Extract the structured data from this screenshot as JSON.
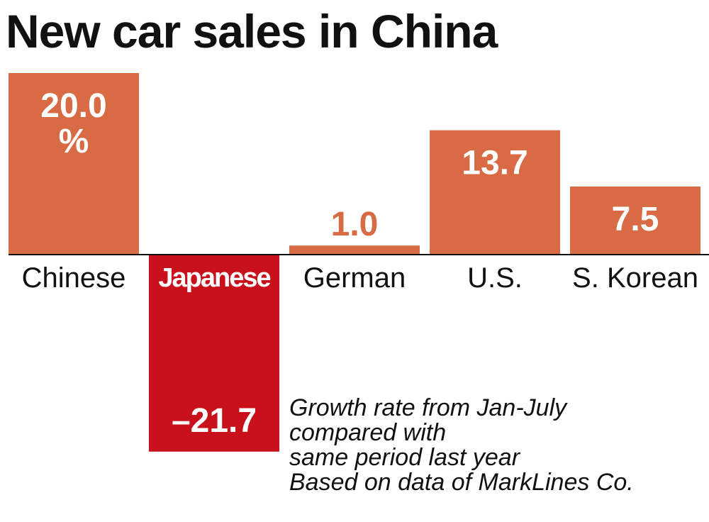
{
  "colors": {
    "bar": "#d86a44",
    "bar_highlight": "#c8111a",
    "label_on_bar": "#ffffff",
    "text": "#111111",
    "axis": "#111111"
  },
  "chart_data": {
    "type": "bar",
    "title": "New car sales in China",
    "categories": [
      "Chinese",
      "Japanese",
      "German",
      "U.S.",
      "S. Korean"
    ],
    "values": [
      20.0,
      -21.7,
      1.0,
      13.7,
      7.5
    ],
    "data_labels": [
      "20.0",
      "–21.7",
      "1.0",
      "13.7",
      "7.5"
    ],
    "unit_label": "%",
    "highlight_category": "Japanese",
    "xlabel": "",
    "ylabel": "",
    "ylim": [
      -22.5,
      20.5
    ],
    "grid": false,
    "notes": [
      "Growth rate from Jan-July",
      "compared with",
      "same period last year",
      "Based on data of MarkLines Co."
    ]
  }
}
